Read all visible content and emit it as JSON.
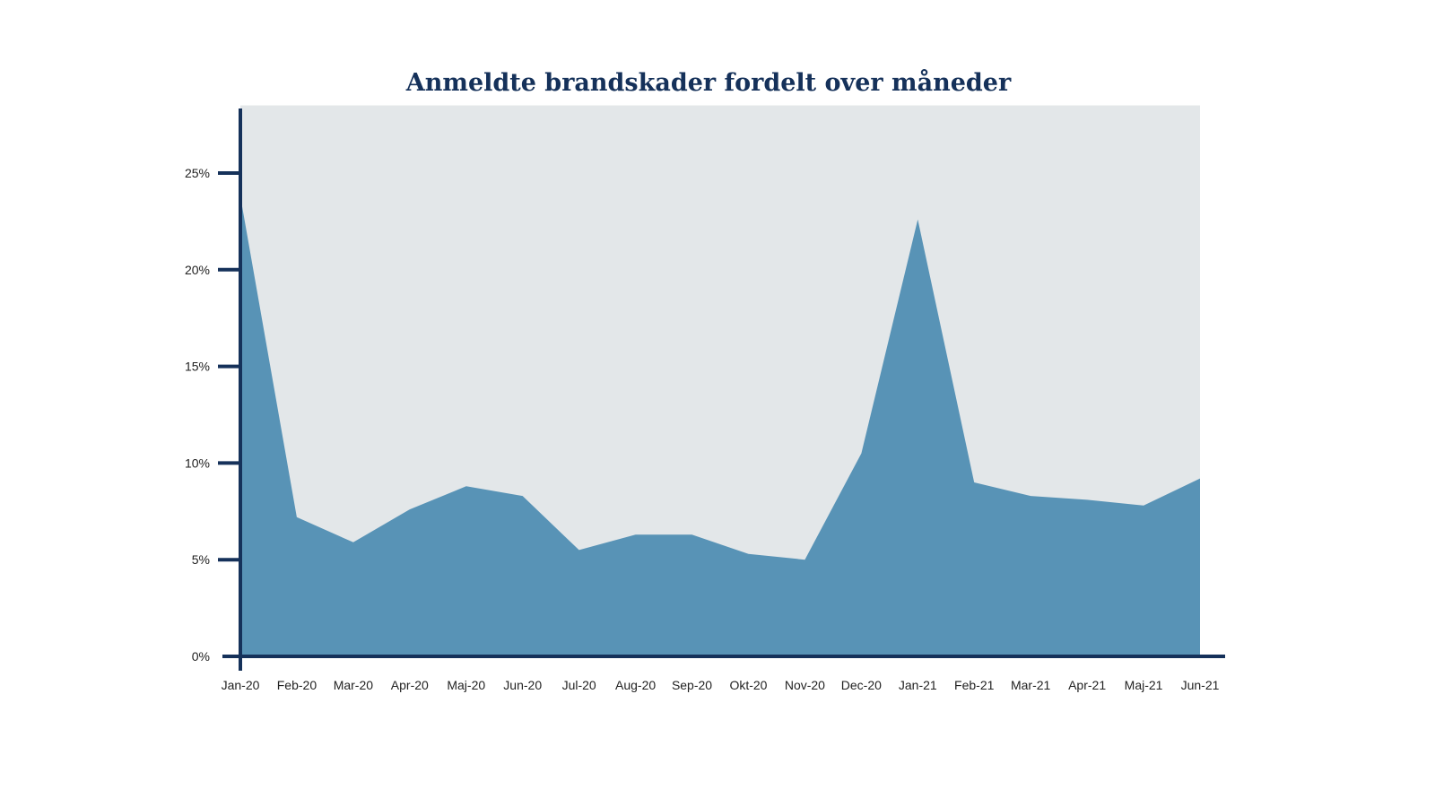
{
  "colors": {
    "title": "#15315a",
    "plot_background": "#e3e7e9",
    "area_fill": "#5893b6",
    "axis": "#15315a",
    "tick_label": "#222222"
  },
  "chart_data": {
    "type": "area",
    "title": "Anmeldte brandskader fordelt over måneder",
    "xlabel": "",
    "ylabel": "",
    "categories": [
      "Jan-20",
      "Feb-20",
      "Mar-20",
      "Apr-20",
      "Maj-20",
      "Jun-20",
      "Jul-20",
      "Aug-20",
      "Sep-20",
      "Okt-20",
      "Nov-20",
      "Dec-20",
      "Jan-21",
      "Feb-21",
      "Mar-21",
      "Apr-21",
      "Maj-21",
      "Jun-21"
    ],
    "series": [
      {
        "values": [
          23.8,
          7.2,
          5.9,
          7.6,
          8.8,
          8.3,
          5.5,
          6.3,
          6.3,
          5.3,
          5.0,
          10.5,
          22.6,
          9.0,
          8.3,
          8.1,
          7.8,
          9.2
        ]
      }
    ],
    "y_ticks": [
      0,
      5,
      10,
      15,
      20,
      25
    ],
    "y_tick_labels": [
      "0%",
      "5%",
      "10%",
      "15%",
      "20%",
      "25%"
    ],
    "ylim": [
      0,
      28.5
    ],
    "grid": false,
    "legend": "none"
  }
}
